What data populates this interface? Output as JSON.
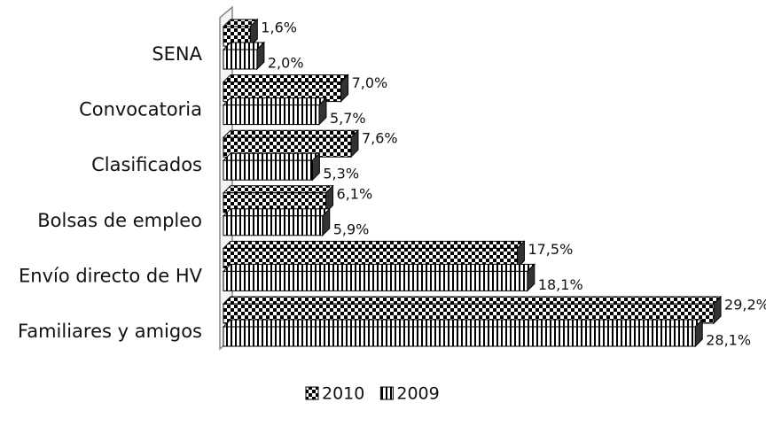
{
  "chart_data": {
    "type": "bar",
    "orientation": "horizontal",
    "categories": [
      "SENA",
      "Convocatoria",
      "Clasificados",
      "Bolsas de empleo",
      "Envío directo de HV",
      "Familiares y amigos"
    ],
    "series": [
      {
        "name": "2010",
        "values": [
          1.6,
          7.0,
          7.6,
          6.1,
          17.5,
          29.2
        ],
        "value_labels": [
          "1,6%",
          "7,0%",
          "7,6%",
          "6,1%",
          "17,5%",
          "29,2%"
        ]
      },
      {
        "name": "2009",
        "values": [
          2.0,
          5.7,
          5.3,
          5.9,
          18.1,
          28.1
        ],
        "value_labels": [
          "2,0%",
          "5,7%",
          "5,3%",
          "5,9%",
          "18,1%",
          "28,1%"
        ]
      }
    ],
    "legend": "bottom"
  }
}
